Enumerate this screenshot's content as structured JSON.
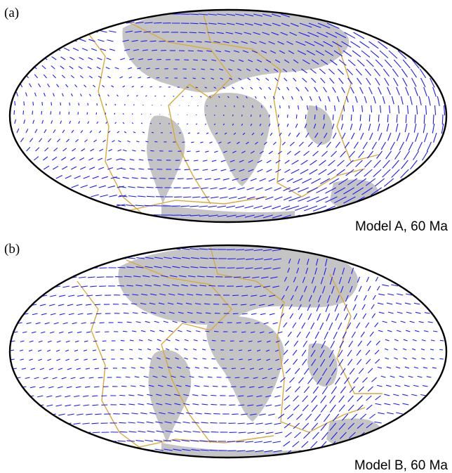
{
  "panels": [
    {
      "label": "(a)",
      "caption": "Model A, 60 Ma"
    },
    {
      "label": "(b)",
      "caption": "Model B, 60 Ma"
    }
  ]
}
